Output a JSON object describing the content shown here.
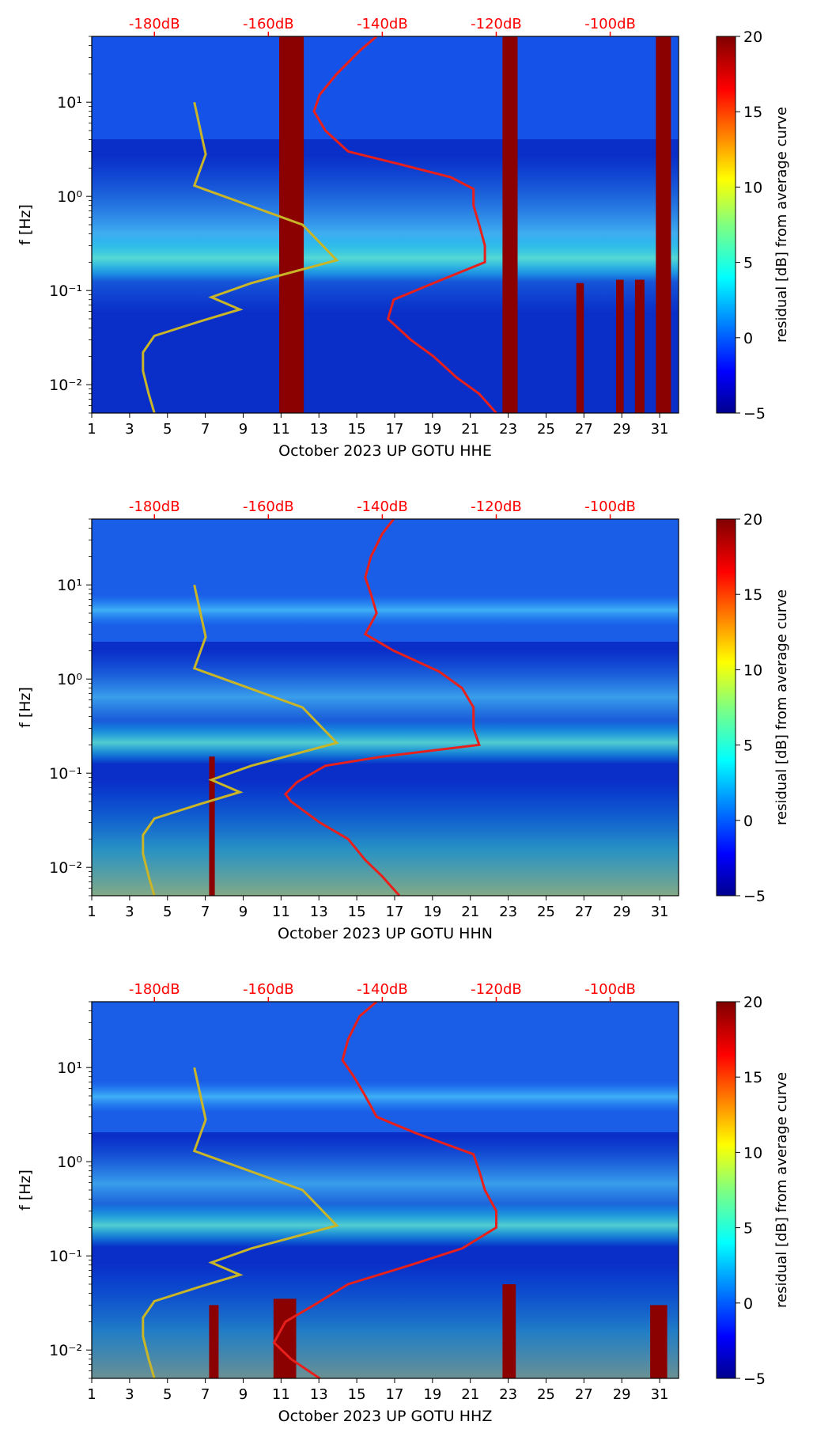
{
  "chart_data": [
    {
      "type": "heatmap",
      "xlabel": "October 2023 UP GOTU  HHE",
      "ylabel": "f [Hz]",
      "x_ticks": [
        "1",
        "3",
        "5",
        "7",
        "9",
        "11",
        "13",
        "15",
        "17",
        "19",
        "21",
        "23",
        "25",
        "27",
        "29",
        "31"
      ],
      "x_range": [
        1,
        32
      ],
      "y_ticks": [
        "10⁻²",
        "10⁻¹",
        "10⁰",
        "10¹"
      ],
      "y_range": [
        0.005,
        50
      ],
      "top_ticks": [
        "-180dB",
        "-160dB",
        "-140dB",
        "-120dB",
        "-100dB"
      ],
      "colorbar_label": "residual [dB] from average curve",
      "colorbar_ticks": [
        "−5",
        "0",
        "5",
        "10",
        "15",
        "20"
      ],
      "colorbar_range": [
        -5,
        20
      ],
      "red_curve": {
        "freqs": [
          0.005,
          0.008,
          0.012,
          0.02,
          0.03,
          0.05,
          0.08,
          0.12,
          0.2,
          0.3,
          0.5,
          0.8,
          1.2,
          1.6,
          2.2,
          3,
          5,
          8,
          12,
          20,
          35,
          50
        ],
        "db": [
          -120,
          -123,
          -127,
          -131,
          -135,
          -139,
          -138,
          -131,
          -122,
          -122,
          -123,
          -124,
          -124,
          -128,
          -137,
          -146,
          -150,
          -152,
          -151,
          -148,
          -144,
          -141
        ]
      },
      "yellow_curve": {
        "freqs": [
          0.005,
          0.008,
          0.014,
          0.022,
          0.033,
          0.047,
          0.063,
          0.085,
          0.12,
          0.21,
          0.5,
          1.3,
          2.8,
          10
        ],
        "db": [
          -180,
          -181,
          -182,
          -182,
          -180,
          -172,
          -165,
          -170,
          -163,
          -148,
          -154,
          -173,
          -171,
          -173
        ]
      },
      "blocks": [
        {
          "x0": 10.9,
          "x1": 12.2,
          "fmin": 0.005,
          "fmax": 50
        },
        {
          "x0": 22.7,
          "x1": 23.5,
          "fmin": 0.005,
          "fmax": 50
        },
        {
          "x0": 30.8,
          "x1": 31.6,
          "fmin": 0.005,
          "fmax": 50
        },
        {
          "x0": 26.6,
          "x1": 27.0,
          "fmin": 0.005,
          "fmax": 0.12
        },
        {
          "x0": 28.7,
          "x1": 29.1,
          "fmin": 0.005,
          "fmax": 0.13
        },
        {
          "x0": 29.7,
          "x1": 30.2,
          "fmin": 0.005,
          "fmax": 0.13
        }
      ]
    },
    {
      "type": "heatmap",
      "xlabel": "October 2023 UP GOTU  HHN",
      "ylabel": "f [Hz]",
      "x_ticks": [
        "1",
        "3",
        "5",
        "7",
        "9",
        "11",
        "13",
        "15",
        "17",
        "19",
        "21",
        "23",
        "25",
        "27",
        "29",
        "31"
      ],
      "x_range": [
        1,
        32
      ],
      "y_ticks": [
        "10⁻²",
        "10⁻¹",
        "10⁰",
        "10¹"
      ],
      "y_range": [
        0.005,
        50
      ],
      "top_ticks": [
        "-180dB",
        "-160dB",
        "-140dB",
        "-120dB",
        "-100dB"
      ],
      "colorbar_label": "residual [dB] from average curve",
      "colorbar_ticks": [
        "−5",
        "0",
        "5",
        "10",
        "15",
        "20"
      ],
      "colorbar_range": [
        -5,
        20
      ],
      "red_curve": {
        "freqs": [
          0.005,
          0.008,
          0.012,
          0.02,
          0.03,
          0.05,
          0.06,
          0.08,
          0.12,
          0.15,
          0.2,
          0.3,
          0.5,
          0.8,
          1.2,
          2,
          3,
          5,
          8,
          12,
          20,
          35,
          50
        ],
        "db": [
          -137,
          -140,
          -143,
          -146,
          -151,
          -156,
          -157,
          -155,
          -150,
          -140,
          -123,
          -124,
          -124,
          -126,
          -130,
          -138,
          -143,
          -141,
          -142,
          -143,
          -142,
          -140,
          -138
        ]
      },
      "yellow_curve": {
        "freqs": [
          0.005,
          0.008,
          0.014,
          0.022,
          0.033,
          0.047,
          0.063,
          0.085,
          0.12,
          0.21,
          0.5,
          1.3,
          2.8,
          10
        ],
        "db": [
          -180,
          -181,
          -182,
          -182,
          -180,
          -172,
          -165,
          -170,
          -163,
          -148,
          -154,
          -173,
          -171,
          -173
        ]
      },
      "blocks": [
        {
          "x0": 7.2,
          "x1": 7.5,
          "fmin": 0.005,
          "fmax": 0.15
        }
      ]
    },
    {
      "type": "heatmap",
      "xlabel": "October 2023 UP GOTU  HHZ",
      "ylabel": "f [Hz]",
      "x_ticks": [
        "1",
        "3",
        "5",
        "7",
        "9",
        "11",
        "13",
        "15",
        "17",
        "19",
        "21",
        "23",
        "25",
        "27",
        "29",
        "31"
      ],
      "x_range": [
        1,
        32
      ],
      "y_ticks": [
        "10⁻²",
        "10⁻¹",
        "10⁰",
        "10¹"
      ],
      "y_range": [
        0.005,
        50
      ],
      "top_ticks": [
        "-180dB",
        "-160dB",
        "-140dB",
        "-120dB",
        "-100dB"
      ],
      "colorbar_label": "residual [dB] from average curve",
      "colorbar_ticks": [
        "−5",
        "0",
        "5",
        "10",
        "15",
        "20"
      ],
      "colorbar_range": [
        -5,
        20
      ],
      "red_curve": {
        "freqs": [
          0.005,
          0.008,
          0.012,
          0.02,
          0.03,
          0.05,
          0.08,
          0.12,
          0.2,
          0.3,
          0.5,
          0.8,
          1.2,
          2,
          3,
          5,
          8,
          12,
          20,
          35,
          50
        ],
        "db": [
          -151,
          -156,
          -159,
          -157,
          -152,
          -146,
          -135,
          -126,
          -120,
          -120,
          -122,
          -123,
          -124,
          -134,
          -141,
          -143,
          -145,
          -147,
          -146,
          -144,
          -141
        ]
      },
      "yellow_curve": {
        "freqs": [
          0.005,
          0.008,
          0.014,
          0.022,
          0.033,
          0.047,
          0.063,
          0.085,
          0.12,
          0.21,
          0.5,
          1.3,
          2.8,
          10
        ],
        "db": [
          -180,
          -181,
          -182,
          -182,
          -180,
          -172,
          -165,
          -170,
          -163,
          -148,
          -154,
          -173,
          -171,
          -173
        ]
      },
      "blocks": [
        {
          "x0": 22.7,
          "x1": 23.4,
          "fmin": 0.005,
          "fmax": 0.05
        },
        {
          "x0": 7.2,
          "x1": 7.7,
          "fmin": 0.005,
          "fmax": 0.03
        },
        {
          "x0": 10.6,
          "x1": 11.8,
          "fmin": 0.005,
          "fmax": 0.035
        },
        {
          "x0": 30.5,
          "x1": 31.4,
          "fmin": 0.005,
          "fmax": 0.03
        }
      ]
    }
  ],
  "colors": {
    "red_curve": "#e8201c",
    "yellow_curve": "#c9b528",
    "top_tick_text": "#ff0000",
    "text": "#000000"
  }
}
